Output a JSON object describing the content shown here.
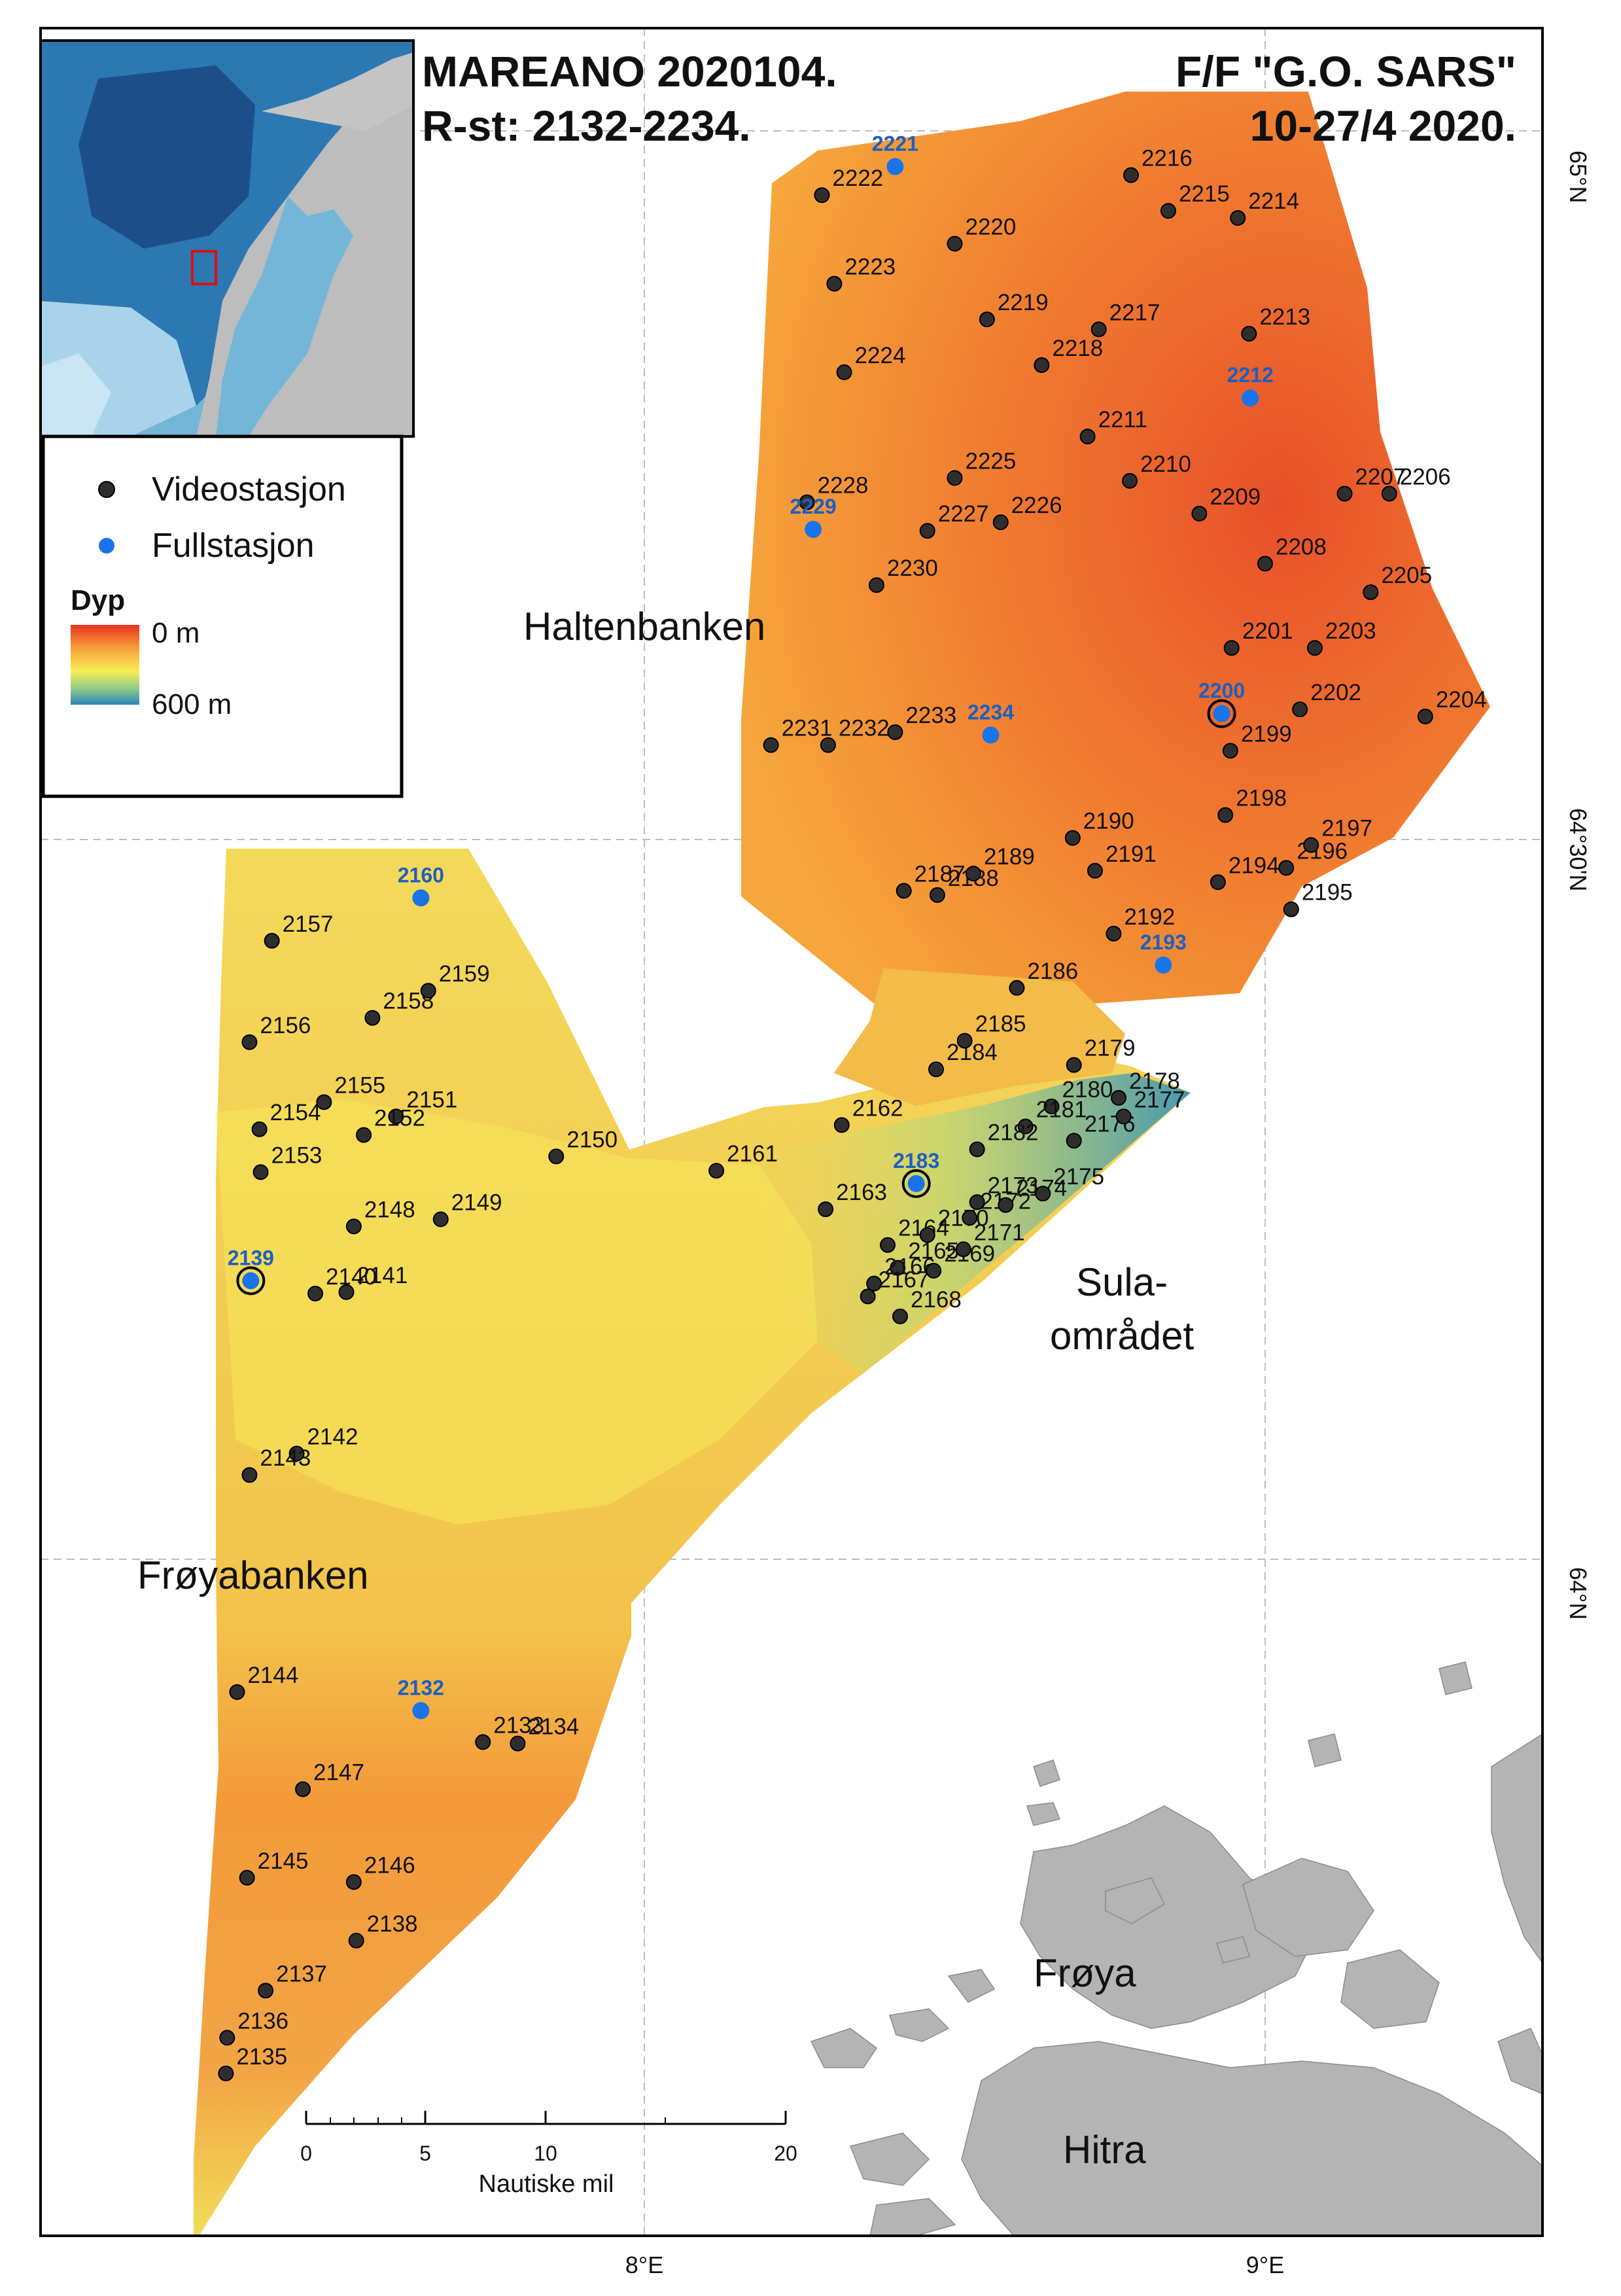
{
  "title": {
    "left_line1": "MAREANO 2020104.",
    "left_line2": "R-st: 2132-2234.",
    "right_line1": "F/F \"G.O. SARS\"",
    "right_line2": "10-27/4 2020."
  },
  "legend": {
    "video_label": "Videostasjon",
    "full_label": "Fullstasjon",
    "depth_title": "Dyp",
    "depth_min": "0 m",
    "depth_max": "600 m",
    "depth_colors": [
      "#e8321e",
      "#f6a23a",
      "#f6ee55",
      "#8fc889",
      "#2a86b8"
    ]
  },
  "places": {
    "haltenbanken": "Haltenbanken",
    "froyabanken": "Frøyabanken",
    "sula_line1": "Sula-",
    "sula_line2": "området",
    "froya": "Frøya",
    "hitra": "Hitra"
  },
  "coords": {
    "lat_65": "65°N",
    "lat_6430": "64°30'N",
    "lat_64": "64°N",
    "lon_8": "8°E",
    "lon_9": "9°E"
  },
  "scalebar": {
    "title": "Nautiske mil",
    "ticks": [
      "0",
      "5",
      "10",
      "20"
    ]
  },
  "colors": {
    "video_station": "#2e2e2e",
    "full_station": "#1a73e8",
    "land": "#b4b4b4"
  },
  "stations": [
    {
      "id": "2132",
      "type": "full",
      "lon": 7.64,
      "lat": 63.894
    },
    {
      "id": "2133",
      "type": "video",
      "lon": 7.74,
      "lat": 63.872
    },
    {
      "id": "2134",
      "type": "video",
      "lon": 7.796,
      "lat": 63.871
    },
    {
      "id": "2135",
      "type": "video",
      "lon": 7.326,
      "lat": 63.64
    },
    {
      "id": "2136",
      "type": "video",
      "lon": 7.328,
      "lat": 63.665
    },
    {
      "id": "2137",
      "type": "video",
      "lon": 7.39,
      "lat": 63.698
    },
    {
      "id": "2138",
      "type": "video",
      "lon": 7.536,
      "lat": 63.733
    },
    {
      "id": "2139",
      "type": "full",
      "lon": 7.366,
      "lat": 64.195
    },
    {
      "id": "2140",
      "type": "video",
      "lon": 7.47,
      "lat": 64.186
    },
    {
      "id": "2141",
      "type": "video",
      "lon": 7.52,
      "lat": 64.187
    },
    {
      "id": "2142",
      "type": "video",
      "lon": 7.44,
      "lat": 64.074
    },
    {
      "id": "2143",
      "type": "video",
      "lon": 7.364,
      "lat": 64.059
    },
    {
      "id": "2144",
      "type": "video",
      "lon": 7.344,
      "lat": 63.907
    },
    {
      "id": "2145",
      "type": "video",
      "lon": 7.36,
      "lat": 63.777
    },
    {
      "id": "2146",
      "type": "video",
      "lon": 7.532,
      "lat": 63.774
    },
    {
      "id": "2147",
      "type": "video",
      "lon": 7.45,
      "lat": 63.839
    },
    {
      "id": "2148",
      "type": "video",
      "lon": 7.532,
      "lat": 64.233
    },
    {
      "id": "2149",
      "type": "video",
      "lon": 7.672,
      "lat": 64.238
    },
    {
      "id": "2150",
      "type": "video",
      "lon": 7.858,
      "lat": 64.282
    },
    {
      "id": "2151",
      "type": "video",
      "lon": 7.6,
      "lat": 64.31
    },
    {
      "id": "2152",
      "type": "video",
      "lon": 7.548,
      "lat": 64.297
    },
    {
      "id": "2153",
      "type": "video",
      "lon": 7.382,
      "lat": 64.271
    },
    {
      "id": "2154",
      "type": "video",
      "lon": 7.38,
      "lat": 64.301
    },
    {
      "id": "2155",
      "type": "video",
      "lon": 7.484,
      "lat": 64.32
    },
    {
      "id": "2156",
      "type": "video",
      "lon": 7.364,
      "lat": 64.362
    },
    {
      "id": "2157",
      "type": "video",
      "lon": 7.4,
      "lat": 64.433
    },
    {
      "id": "2158",
      "type": "video",
      "lon": 7.562,
      "lat": 64.379
    },
    {
      "id": "2159",
      "type": "video",
      "lon": 7.652,
      "lat": 64.398
    },
    {
      "id": "2160",
      "type": "full",
      "lon": 7.64,
      "lat": 64.463
    },
    {
      "id": "2161",
      "type": "video",
      "lon": 8.116,
      "lat": 64.272
    },
    {
      "id": "2162",
      "type": "video",
      "lon": 8.318,
      "lat": 64.304
    },
    {
      "id": "2163",
      "type": "video",
      "lon": 8.292,
      "lat": 64.245
    },
    {
      "id": "2164",
      "type": "video",
      "lon": 8.392,
      "lat": 64.22
    },
    {
      "id": "2165",
      "type": "video",
      "lon": 8.408,
      "lat": 64.204
    },
    {
      "id": "2166",
      "type": "video",
      "lon": 8.37,
      "lat": 64.193
    },
    {
      "id": "2167",
      "type": "video",
      "lon": 8.36,
      "lat": 64.184
    },
    {
      "id": "2168",
      "type": "video",
      "lon": 8.412,
      "lat": 64.17
    },
    {
      "id": "2169",
      "type": "video",
      "lon": 8.466,
      "lat": 64.202
    },
    {
      "id": "2170",
      "type": "video",
      "lon": 8.456,
      "lat": 64.227
    },
    {
      "id": "2171",
      "type": "video",
      "lon": 8.514,
      "lat": 64.217
    },
    {
      "id": "2172",
      "type": "video",
      "lon": 8.524,
      "lat": 64.239
    },
    {
      "id": "2173",
      "type": "video",
      "lon": 8.536,
      "lat": 64.25
    },
    {
      "id": "2174",
      "type": "video",
      "lon": 8.582,
      "lat": 64.248
    },
    {
      "id": "2175",
      "type": "video",
      "lon": 8.642,
      "lat": 64.256
    },
    {
      "id": "2176",
      "type": "video",
      "lon": 8.692,
      "lat": 64.293
    },
    {
      "id": "2177",
      "type": "video",
      "lon": 8.772,
      "lat": 64.31
    },
    {
      "id": "2178",
      "type": "video",
      "lon": 8.764,
      "lat": 64.323
    },
    {
      "id": "2179",
      "type": "video",
      "lon": 8.692,
      "lat": 64.346
    },
    {
      "id": "2180",
      "type": "video",
      "lon": 8.656,
      "lat": 64.317
    },
    {
      "id": "2181",
      "type": "video",
      "lon": 8.614,
      "lat": 64.303
    },
    {
      "id": "2182",
      "type": "video",
      "lon": 8.536,
      "lat": 64.287
    },
    {
      "id": "2183",
      "type": "full",
      "lon": 8.438,
      "lat": 64.263
    },
    {
      "id": "2184",
      "type": "video",
      "lon": 8.47,
      "lat": 64.343
    },
    {
      "id": "2185",
      "type": "video",
      "lon": 8.516,
      "lat": 64.363
    },
    {
      "id": "2186",
      "type": "video",
      "lon": 8.6,
      "lat": 64.4
    },
    {
      "id": "2187",
      "type": "video",
      "lon": 8.418,
      "lat": 64.468
    },
    {
      "id": "2188",
      "type": "video",
      "lon": 8.472,
      "lat": 64.465
    },
    {
      "id": "2189",
      "type": "video",
      "lon": 8.53,
      "lat": 64.48
    },
    {
      "id": "2190",
      "type": "video",
      "lon": 8.69,
      "lat": 64.505
    },
    {
      "id": "2191",
      "type": "video",
      "lon": 8.726,
      "lat": 64.482
    },
    {
      "id": "2192",
      "type": "video",
      "lon": 8.756,
      "lat": 64.438
    },
    {
      "id": "2193",
      "type": "full",
      "lon": 8.836,
      "lat": 64.416
    },
    {
      "id": "2194",
      "type": "video",
      "lon": 8.924,
      "lat": 64.474
    },
    {
      "id": "2195",
      "type": "video",
      "lon": 9.042,
      "lat": 64.455
    },
    {
      "id": "2196",
      "type": "video",
      "lon": 9.034,
      "lat": 64.484
    },
    {
      "id": "2197",
      "type": "video",
      "lon": 9.074,
      "lat": 64.5
    },
    {
      "id": "2198",
      "type": "video",
      "lon": 8.936,
      "lat": 64.521
    },
    {
      "id": "2199",
      "type": "video",
      "lon": 8.944,
      "lat": 64.566
    },
    {
      "id": "2200",
      "type": "full",
      "lon": 8.93,
      "lat": 64.592
    },
    {
      "id": "2201",
      "type": "video",
      "lon": 8.946,
      "lat": 64.638
    },
    {
      "id": "2202",
      "type": "video",
      "lon": 9.056,
      "lat": 64.595
    },
    {
      "id": "2203",
      "type": "video",
      "lon": 9.08,
      "lat": 64.638
    },
    {
      "id": "2204",
      "type": "video",
      "lon": 9.258,
      "lat": 64.59
    },
    {
      "id": "2205",
      "type": "video",
      "lon": 9.17,
      "lat": 64.677
    },
    {
      "id": "2206",
      "type": "video",
      "lon": 9.2,
      "lat": 64.746
    },
    {
      "id": "2207",
      "type": "video",
      "lon": 9.128,
      "lat": 64.746
    },
    {
      "id": "2208",
      "type": "video",
      "lon": 9.0,
      "lat": 64.697
    },
    {
      "id": "2209",
      "type": "video",
      "lon": 8.894,
      "lat": 64.732
    },
    {
      "id": "2210",
      "type": "video",
      "lon": 8.782,
      "lat": 64.755
    },
    {
      "id": "2211",
      "type": "video",
      "lon": 8.714,
      "lat": 64.786
    },
    {
      "id": "2212",
      "type": "full",
      "lon": 8.976,
      "lat": 64.813
    },
    {
      "id": "2213",
      "type": "video",
      "lon": 8.974,
      "lat": 64.858
    },
    {
      "id": "2214",
      "type": "video",
      "lon": 8.956,
      "lat": 64.939
    },
    {
      "id": "2215",
      "type": "video",
      "lon": 8.844,
      "lat": 64.944
    },
    {
      "id": "2216",
      "type": "video",
      "lon": 8.784,
      "lat": 64.969
    },
    {
      "id": "2217",
      "type": "video",
      "lon": 8.732,
      "lat": 64.861
    },
    {
      "id": "2218",
      "type": "video",
      "lon": 8.64,
      "lat": 64.836
    },
    {
      "id": "2219",
      "type": "video",
      "lon": 8.552,
      "lat": 64.868
    },
    {
      "id": "2220",
      "type": "video",
      "lon": 8.5,
      "lat": 64.921
    },
    {
      "id": "2221",
      "type": "full",
      "lon": 8.404,
      "lat": 64.975
    },
    {
      "id": "2222",
      "type": "video",
      "lon": 8.286,
      "lat": 64.955
    },
    {
      "id": "2223",
      "type": "video",
      "lon": 8.306,
      "lat": 64.893
    },
    {
      "id": "2224",
      "type": "video",
      "lon": 8.322,
      "lat": 64.831
    },
    {
      "id": "2225",
      "type": "video",
      "lon": 8.5,
      "lat": 64.757
    },
    {
      "id": "2226",
      "type": "video",
      "lon": 8.574,
      "lat": 64.726
    },
    {
      "id": "2227",
      "type": "video",
      "lon": 8.456,
      "lat": 64.72
    },
    {
      "id": "2228",
      "type": "video",
      "lon": 8.262,
      "lat": 64.74
    },
    {
      "id": "2229",
      "type": "full",
      "lon": 8.272,
      "lat": 64.721
    },
    {
      "id": "2230",
      "type": "video",
      "lon": 8.374,
      "lat": 64.682
    },
    {
      "id": "2231",
      "type": "video",
      "lon": 8.204,
      "lat": 64.57
    },
    {
      "id": "2232",
      "type": "video",
      "lon": 8.296,
      "lat": 64.57
    },
    {
      "id": "2233",
      "type": "video",
      "lon": 8.404,
      "lat": 64.579
    },
    {
      "id": "2234",
      "type": "full",
      "lon": 8.558,
      "lat": 64.577
    }
  ]
}
